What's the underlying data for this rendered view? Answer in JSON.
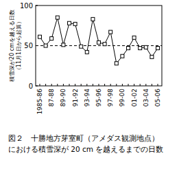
{
  "chart_data": {
    "type": "line",
    "caption": [
      "図２　十勝地方芽室町（アメダス観測地点）",
      "における積雪深が 20 cm を越えるまでの日数"
    ],
    "ylabel": [
      "積雪深が20 cmを越える日数",
      "（11月1日から起算）"
    ],
    "categories": [
      "1985-86",
      null,
      "87-88",
      null,
      "89-90",
      null,
      "91-92",
      null,
      "93-94",
      null,
      "95-96",
      null,
      "97-98",
      null,
      "99-00",
      null,
      "01-02",
      null,
      "03-04",
      null,
      "05-06"
    ],
    "values": [
      61,
      50,
      59,
      85,
      51,
      78,
      77,
      49,
      42,
      83,
      54,
      52,
      67,
      28,
      37,
      47,
      60,
      47,
      48,
      36,
      47
    ],
    "mean_line": 50,
    "color": "#000000",
    "marker": "square",
    "ylim": [
      0,
      100
    ],
    "yticks": [
      0,
      50,
      100
    ],
    "grid": false
  }
}
